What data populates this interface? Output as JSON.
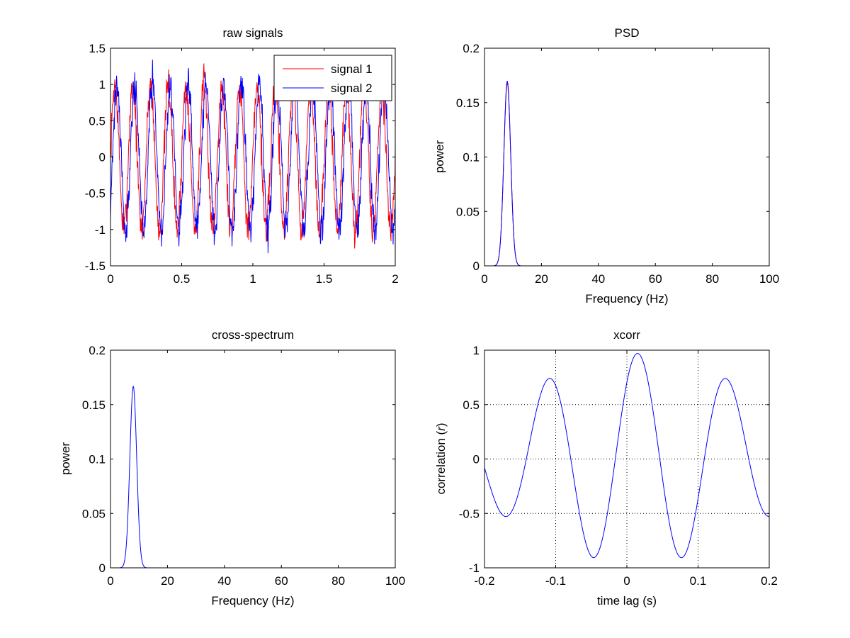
{
  "figure": {
    "background": "#ffffff"
  },
  "chart_data": [
    {
      "id": "raw",
      "type": "line",
      "title": "raw signals",
      "xlabel": "",
      "ylabel": "",
      "xlim": [
        0,
        2
      ],
      "ylim": [
        -1.5,
        1.5
      ],
      "xticks": [
        0,
        0.5,
        1,
        1.5,
        2
      ],
      "xticklabels": [
        "0",
        "0.5",
        "1",
        "1.5",
        "2"
      ],
      "yticks": [
        -1.5,
        -1,
        -0.5,
        0,
        0.5,
        1,
        1.5
      ],
      "yticklabels": [
        "-1.5",
        "-1",
        "-0.5",
        "0",
        "0.5",
        "1",
        "1.5"
      ],
      "grid": false,
      "legend": {
        "position": "top-right",
        "entries": [
          "signal 1",
          "signal 2"
        ]
      },
      "series": [
        {
          "name": "signal 1",
          "color": "#ff0000",
          "generator": "sine",
          "amplitude": 1.0,
          "frequency_hz": 8,
          "phase_deg": 0,
          "noise": 0.12,
          "samples": 800,
          "seed": 7
        },
        {
          "name": "signal 2",
          "color": "#0000ff",
          "generator": "sine",
          "amplitude": 1.0,
          "frequency_hz": 8,
          "phase_deg": -40,
          "noise": 0.12,
          "samples": 800,
          "seed": 21
        }
      ]
    },
    {
      "id": "psd",
      "type": "line",
      "title": "PSD",
      "xlabel": "Frequency (Hz)",
      "ylabel": "power",
      "xlim": [
        0,
        100
      ],
      "ylim": [
        0,
        0.2
      ],
      "xticks": [
        0,
        20,
        40,
        60,
        80,
        100
      ],
      "xticklabels": [
        "0",
        "20",
        "40",
        "60",
        "80",
        "100"
      ],
      "yticks": [
        0,
        0.05,
        0.1,
        0.15,
        0.2
      ],
      "yticklabels": [
        "0",
        "0.05",
        "0.1",
        "0.15",
        "0.2"
      ],
      "grid": false,
      "series": [
        {
          "name": "signal 1",
          "color": "#ff0000",
          "generator": "gaussian-peak",
          "peak_x": 8,
          "peak_y": 0.168,
          "width": 1.2,
          "samples": 501
        },
        {
          "name": "signal 2",
          "color": "#0000ff",
          "generator": "gaussian-peak",
          "peak_x": 8,
          "peak_y": 0.17,
          "width": 1.2,
          "samples": 501
        }
      ]
    },
    {
      "id": "cross",
      "type": "line",
      "title": "cross-spectrum",
      "xlabel": "Frequency (Hz)",
      "ylabel": "power",
      "xlim": [
        0,
        100
      ],
      "ylim": [
        0,
        0.2
      ],
      "xticks": [
        0,
        20,
        40,
        60,
        80,
        100
      ],
      "xticklabels": [
        "0",
        "20",
        "40",
        "60",
        "80",
        "100"
      ],
      "yticks": [
        0,
        0.05,
        0.1,
        0.15,
        0.2
      ],
      "yticklabels": [
        "0",
        "0.05",
        "0.1",
        "0.15",
        "0.2"
      ],
      "grid": false,
      "series": [
        {
          "name": "cross-spectrum",
          "color": "#0000ff",
          "generator": "gaussian-peak",
          "peak_x": 8,
          "peak_y": 0.167,
          "width": 1.2,
          "samples": 501
        }
      ]
    },
    {
      "id": "xcorr",
      "type": "line",
      "title": "xcorr",
      "xlabel": "time lag (s)",
      "ylabel_parts": [
        "correlation (",
        "r",
        ")"
      ],
      "xlim": [
        -0.2,
        0.2
      ],
      "ylim": [
        -1,
        1
      ],
      "xticks": [
        -0.2,
        -0.1,
        0,
        0.1,
        0.2
      ],
      "xticklabels": [
        "-0.2",
        "-0.1",
        "0",
        "0.1",
        "0.2"
      ],
      "yticks": [
        -1,
        -0.5,
        0,
        0.5,
        1
      ],
      "yticklabels": [
        "-1",
        "-0.5",
        "0",
        "0.5",
        "1"
      ],
      "grid": true,
      "series": [
        {
          "name": "xcorr",
          "color": "#0000ff",
          "generator": "damped-cosine",
          "center_lag": 0.015,
          "period": 0.125,
          "peak": 0.97,
          "decay": 0.7,
          "samples": 600
        }
      ]
    }
  ]
}
